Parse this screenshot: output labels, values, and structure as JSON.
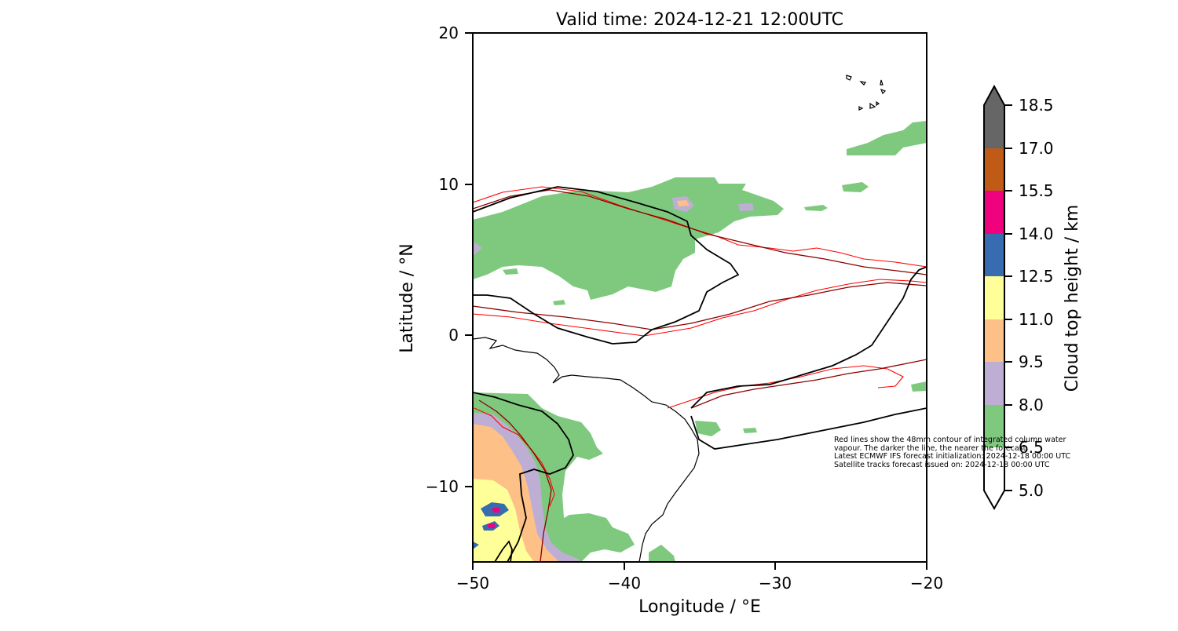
{
  "map": {
    "title": "Valid time: 2024-12-21 12:00UTC",
    "xlabel": "Longitude / °E",
    "ylabel": "Latitude / °N",
    "x_ticks": [
      "−50",
      "−40",
      "−30",
      "−20"
    ],
    "y_ticks": [
      "20",
      "10",
      "0",
      "−10"
    ],
    "lon_range": [
      -50,
      -20
    ],
    "lat_range": [
      -15,
      20
    ]
  },
  "colorbar": {
    "label": "Cloud top height / km",
    "levels": [
      "18.5",
      "17.0",
      "15.5",
      "14.0",
      "12.5",
      "11.0",
      "9.5",
      "8.0",
      "6.5",
      "5.0"
    ],
    "colors": [
      "#666666",
      "#bf5b17",
      "#f0027f",
      "#386cb0",
      "#ffff99",
      "#fdc086",
      "#beaed4",
      "#7fc97f",
      "#ffffff"
    ]
  },
  "note": {
    "line1": "Red lines show the 48mm contour of integrated column water",
    "line2": "vapour. The darker the line, the nearer the forecast.",
    "line3": "Latest ECMWF IFS forecast initialization: 2024-12-18 00:00 UTC",
    "line4": "Satellite tracks forecast issued on: 2024-12-18 00:00 UTC"
  },
  "style": {
    "contour_near": "#2a0000",
    "contour_mid": "#8b0000",
    "contour_far": "#ff0000",
    "coastline": "#000000"
  }
}
